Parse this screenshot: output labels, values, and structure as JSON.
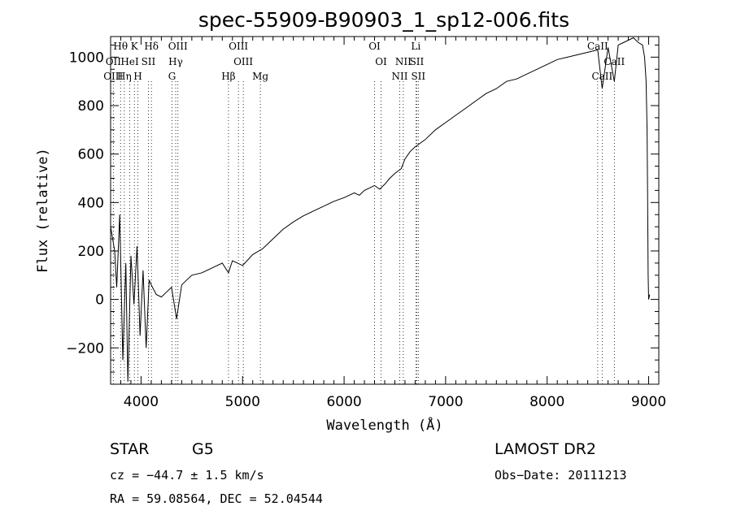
{
  "chart_data": {
    "type": "line",
    "title": "spec-55909-B90903_1_sp12-006.fits",
    "xlabel": "Wavelength (Å)",
    "ylabel": "Flux (relative)",
    "xlim": [
      3700,
      9100
    ],
    "ylim": [
      -350,
      1085
    ],
    "xticks": [
      4000,
      5000,
      6000,
      7000,
      8000,
      9000
    ],
    "yticks": [
      -200,
      0,
      200,
      400,
      600,
      800,
      1000
    ],
    "grid": false,
    "legend": "none",
    "series": [
      {
        "color": "#000000",
        "x": [
          3700,
          3740,
          3760,
          3790,
          3820,
          3850,
          3870,
          3900,
          3930,
          3960,
          3990,
          4020,
          4050,
          4080,
          4100,
          4150,
          4200,
          4250,
          4300,
          4350,
          4400,
          4450,
          4500,
          4600,
          4700,
          4800,
          4861,
          4900,
          5000,
          5100,
          5200,
          5300,
          5400,
          5500,
          5600,
          5700,
          5800,
          5900,
          6000,
          6100,
          6150,
          6200,
          6250,
          6300,
          6350,
          6400,
          6450,
          6500,
          6563,
          6600,
          6650,
          6700,
          6800,
          6900,
          7000,
          7100,
          7200,
          7300,
          7400,
          7500,
          7600,
          7700,
          7800,
          7900,
          8000,
          8100,
          8200,
          8300,
          8400,
          8498,
          8542,
          8600,
          8662,
          8700,
          8750,
          8800,
          8850,
          8900,
          8940,
          8960,
          8975,
          8985,
          8990,
          8995,
          9000,
          9005,
          9010
        ],
        "y": [
          300,
          200,
          50,
          350,
          -250,
          150,
          -340,
          180,
          -20,
          220,
          -150,
          120,
          -200,
          80,
          60,
          20,
          10,
          30,
          50,
          -80,
          60,
          80,
          100,
          110,
          130,
          150,
          110,
          160,
          140,
          185,
          210,
          250,
          290,
          320,
          345,
          365,
          385,
          405,
          420,
          440,
          430,
          450,
          460,
          470,
          455,
          475,
          500,
          520,
          540,
          580,
          610,
          630,
          660,
          700,
          730,
          760,
          790,
          820,
          850,
          870,
          900,
          910,
          930,
          950,
          970,
          990,
          1000,
          1010,
          1020,
          1030,
          870,
          1040,
          900,
          1050,
          1060,
          1070,
          1080,
          1060,
          1050,
          1000,
          900,
          700,
          400,
          100,
          0,
          10,
          20
        ]
      }
    ],
    "spectral_lines": [
      {
        "label": "Hθ",
        "wl": 3798,
        "row": 0
      },
      {
        "label": "OII",
        "wl": 3727,
        "row": 1
      },
      {
        "label": "OIII",
        "wl": 3726,
        "row": 2
      },
      {
        "label": "Hη",
        "wl": 3835,
        "row": 2
      },
      {
        "label": "K",
        "wl": 3934,
        "row": 0
      },
      {
        "label": "HeI",
        "wl": 3889,
        "row": 1
      },
      {
        "label": "H",
        "wl": 3968,
        "row": 2
      },
      {
        "label": "SII",
        "wl": 4072,
        "row": 1
      },
      {
        "label": "Hδ",
        "wl": 4102,
        "row": 0
      },
      {
        "label": "OIII",
        "wl": 4363,
        "row": 0
      },
      {
        "label": "Hγ",
        "wl": 4341,
        "row": 1
      },
      {
        "label": "G",
        "wl": 4305,
        "row": 2
      },
      {
        "label": "Hβ",
        "wl": 4861,
        "row": 2
      },
      {
        "label": "OIII",
        "wl": 4959,
        "row": 0
      },
      {
        "label": "OIII",
        "wl": 5007,
        "row": 1
      },
      {
        "label": "Mg",
        "wl": 5175,
        "row": 2
      },
      {
        "label": "OI",
        "wl": 6300,
        "row": 0
      },
      {
        "label": "OI",
        "wl": 6364,
        "row": 1
      },
      {
        "label": "NII",
        "wl": 6548,
        "row": 2
      },
      {
        "label": "NII",
        "wl": 6583,
        "row": 1
      },
      {
        "label": "Li",
        "wl": 6707,
        "row": 0
      },
      {
        "label": "SII",
        "wl": 6716,
        "row": 1
      },
      {
        "label": "SII",
        "wl": 6731,
        "row": 2
      },
      {
        "label": "CaII",
        "wl": 8498,
        "row": 0
      },
      {
        "label": "CaII",
        "wl": 8542,
        "row": 2
      },
      {
        "label": "CaII",
        "wl": 8662,
        "row": 1
      }
    ]
  },
  "info": {
    "object_class": "STAR",
    "subclass": "G5",
    "survey": "LAMOST DR2",
    "velocity": "cz = −44.7 ± 1.5 km/s",
    "obs_date": "Obs−Date: 20111213",
    "coords": "RA =  59.08564, DEC =  52.04544"
  }
}
